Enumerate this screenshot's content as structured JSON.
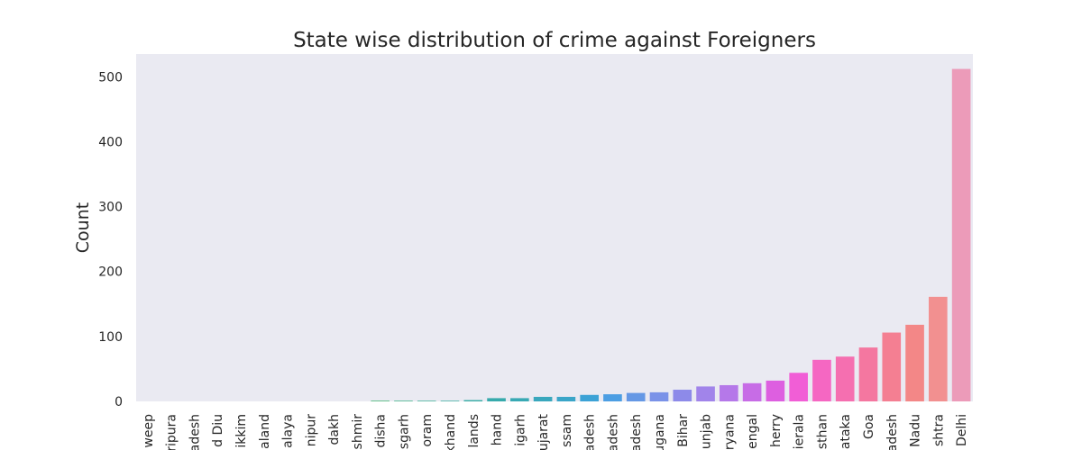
{
  "chart_data": {
    "type": "bar",
    "title": "State wise distribution of crime against Foreigners",
    "xlabel": "",
    "ylabel": "Count",
    "ylim": [
      0,
      535
    ],
    "y_ticks": [
      0,
      100,
      200,
      300,
      400,
      500
    ],
    "grid": false,
    "legend": "none",
    "plot_background": "#eaeaf2",
    "categories": [
      "weep",
      "ripura",
      "adesh",
      "d Diu",
      "ikkim",
      "aland",
      "alaya",
      "nipur",
      "dakh",
      "shmir",
      "disha",
      "sgarh",
      "oram",
      "khand",
      "lands",
      "hand",
      "igarh",
      "ujarat",
      "ssam",
      "adesh",
      "adesh",
      "adesh",
      "ugana",
      "Bihar",
      "unjab",
      "ryana",
      "engal",
      "herry",
      "ierala",
      "sthan",
      "ataka",
      "Goa",
      "adesh",
      "Nadu",
      "shtra",
      "Delhi"
    ],
    "values": [
      0,
      0,
      0,
      0,
      0,
      0,
      0,
      0,
      0,
      0,
      1,
      1,
      1,
      1,
      2,
      5,
      5,
      7,
      7,
      10,
      11,
      13,
      14,
      18,
      23,
      25,
      28,
      32,
      44,
      64,
      69,
      83,
      106,
      118,
      161,
      512
    ],
    "colors": [
      "#f77189",
      "#f6755e",
      "#e98231",
      "#d58e31",
      "#c39531",
      "#b39c31",
      "#a1a231",
      "#8ca831",
      "#6cae31",
      "#37b331",
      "#33b166",
      "#34af81",
      "#35ad90",
      "#36ac9b",
      "#36aba4",
      "#37aaac",
      "#38a9b4",
      "#39a7bd",
      "#3aa5c8",
      "#3ca2d6",
      "#4c9ee3",
      "#6598e5",
      "#7a92e8",
      "#8d8ae9",
      "#a184ea",
      "#b578e9",
      "#c76ce6",
      "#dd5fe0",
      "#f15ed6",
      "#f567c2",
      "#f56fb0",
      "#f477a0",
      "#f47f92",
      "#f38787",
      "#f29090",
      "#ec9bb9"
    ]
  }
}
